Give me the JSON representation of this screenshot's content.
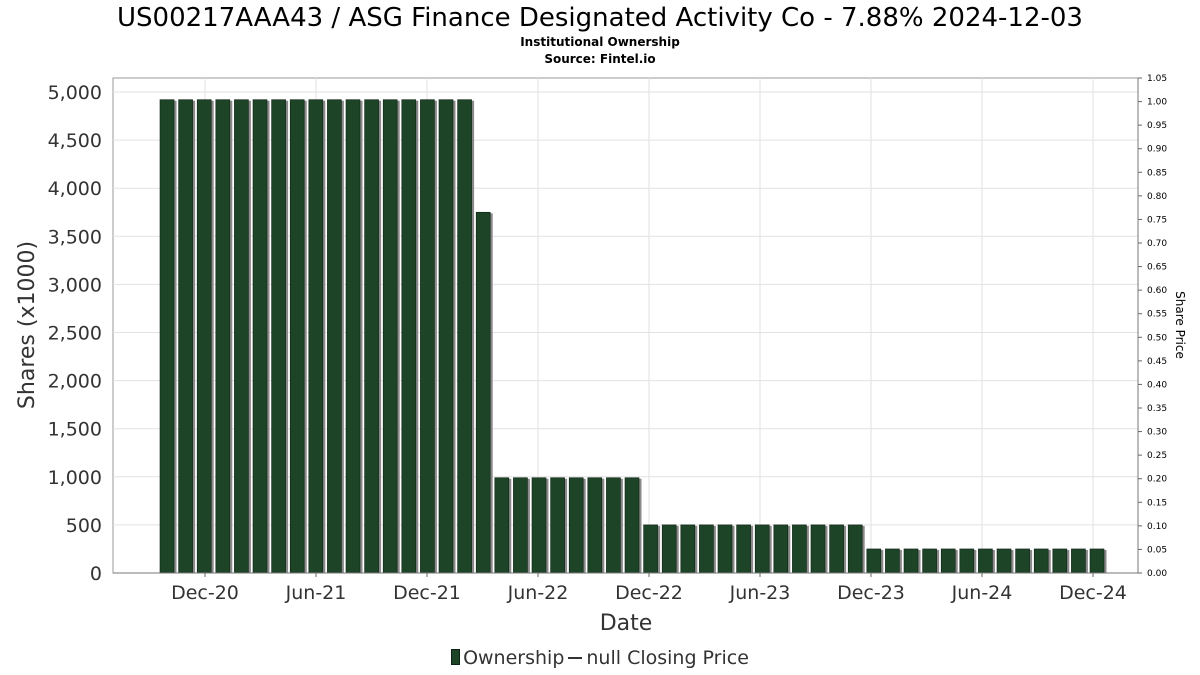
{
  "header": {
    "title": "US00217AAA43 / ASG Finance Designated Activity Co - 7.88% 2024-12-03",
    "subtitle": "Institutional Ownership",
    "source": "Source: Fintel.io"
  },
  "legend": {
    "ownership_label": "Ownership",
    "price_label": "null Closing Price"
  },
  "colors": {
    "bar": "#1d4427",
    "bar_shadow": "#8a8a8a",
    "grid": "#e2e2e2"
  },
  "chart_data": {
    "type": "bar",
    "title": "US00217AAA43 / ASG Finance Designated Activity Co - 7.88% 2024-12-03",
    "subtitle": "Institutional Ownership",
    "xlabel": "Date",
    "ylabel": "Shares (x1000)",
    "y2label": "Share Price",
    "ylim": [
      0,
      5000
    ],
    "y2lim": [
      0,
      1.05
    ],
    "yticks": [
      "0",
      "500",
      "1,000",
      "1,500",
      "2,000",
      "2,500",
      "3,000",
      "3,500",
      "4,000",
      "4,500",
      "5,000"
    ],
    "y2ticks": [
      "0.00",
      "0.05",
      "0.10",
      "0.15",
      "0.20",
      "0.25",
      "0.30",
      "0.35",
      "0.40",
      "0.45",
      "0.50",
      "0.55",
      "0.60",
      "0.65",
      "0.70",
      "0.75",
      "0.80",
      "0.85",
      "0.90",
      "0.95",
      "1.00",
      "1.05"
    ],
    "xticks": [
      "Dec-20",
      "Jun-21",
      "Dec-21",
      "Jun-22",
      "Dec-22",
      "Jun-23",
      "Dec-23",
      "Jun-24",
      "Dec-24"
    ],
    "grid": true,
    "legend_position": "bottom",
    "series": [
      {
        "name": "Ownership",
        "values": [
          4920,
          4920,
          4920,
          4920,
          4920,
          4920,
          4920,
          4920,
          4920,
          4920,
          4920,
          4920,
          4920,
          4920,
          4920,
          4920,
          4920,
          3750,
          990,
          990,
          990,
          990,
          990,
          990,
          990,
          990,
          500,
          500,
          500,
          500,
          500,
          500,
          500,
          500,
          500,
          500,
          500,
          500,
          250,
          250,
          250,
          250,
          250,
          250,
          250,
          250,
          250,
          250,
          250,
          250,
          250
        ]
      },
      {
        "name": "null Closing Price",
        "values": []
      }
    ]
  }
}
